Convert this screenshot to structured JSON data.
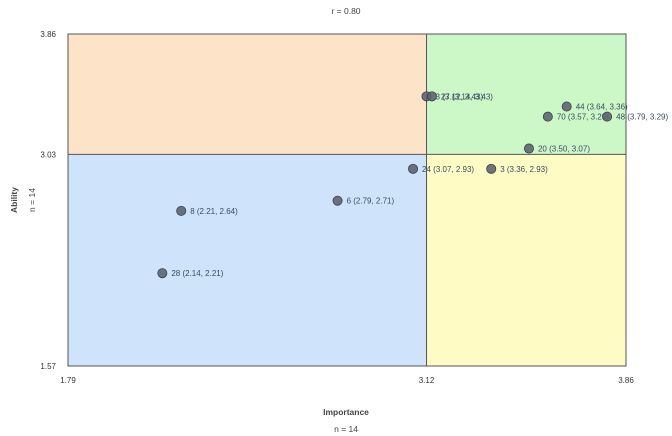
{
  "chart_data": {
    "type": "scatter",
    "title": "r = 0.80",
    "xlabel": "Importance",
    "ylabel": "Ability",
    "x_n_label": "n = 14",
    "y_n_label": "n = 14",
    "xlim": [
      1.79,
      3.86
    ],
    "ylim": [
      1.57,
      3.86
    ],
    "x_ticks": [
      "1.79",
      "3.12",
      "3.86"
    ],
    "y_ticks": [
      "1.57",
      "3.03",
      "3.86"
    ],
    "x_divider": 3.12,
    "y_divider": 3.03,
    "quadrants": {
      "top_left": "#fde3c7",
      "top_right": "#ccf7c6",
      "bottom_left": "#cfe3fb",
      "bottom_right": "#fefcc4"
    },
    "point_color": "#5a6170",
    "points": [
      {
        "id": "3",
        "x": 3.12,
        "y": 3.43,
        "label": "3 (3.12, 3.43)"
      },
      {
        "id": "27",
        "x": 3.14,
        "y": 3.43,
        "label": "27 (3.14, 3.43)"
      },
      {
        "id": "44",
        "x": 3.64,
        "y": 3.36,
        "label": "44 (3.64, 3.36)"
      },
      {
        "id": "70",
        "x": 3.57,
        "y": 3.29,
        "label": "70 (3.57, 3.29)"
      },
      {
        "id": "48",
        "x": 3.79,
        "y": 3.29,
        "label": "48 (3.79, 3.29)"
      },
      {
        "id": "20",
        "x": 3.5,
        "y": 3.07,
        "label": "20 (3.50, 3.07)"
      },
      {
        "id": "24",
        "x": 3.07,
        "y": 2.93,
        "label": "24 (3.07, 2.93)"
      },
      {
        "id": "3b",
        "x": 3.36,
        "y": 2.93,
        "label": "3 (3.36, 2.93)"
      },
      {
        "id": "6",
        "x": 2.79,
        "y": 2.71,
        "label": "6 (2.79, 2.71)"
      },
      {
        "id": "8",
        "x": 2.21,
        "y": 2.64,
        "label": "8 (2.21, 2.64)"
      },
      {
        "id": "28",
        "x": 2.14,
        "y": 2.21,
        "label": "28 (2.14, 2.21)"
      }
    ]
  }
}
